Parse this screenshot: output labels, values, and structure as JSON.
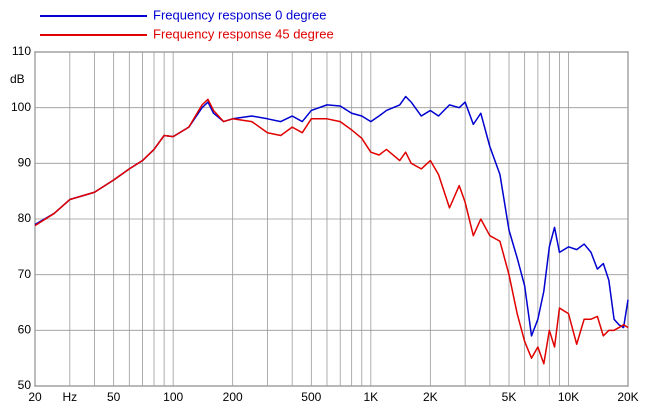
{
  "chart_data": {
    "type": "line",
    "ylabel": "dB",
    "log_x": true,
    "grid": true,
    "xlim": [
      20,
      20000
    ],
    "ylim": [
      50,
      110
    ],
    "yticks": [
      50,
      60,
      70,
      80,
      90,
      100,
      110
    ],
    "xticks": [
      20,
      {
        "value": 30,
        "label": "Hz"
      },
      50,
      100,
      200,
      500,
      {
        "value": 1000,
        "label": "1K"
      },
      {
        "value": 2000,
        "label": "2K"
      },
      {
        "value": 5000,
        "label": "5K"
      },
      {
        "value": 10000,
        "label": "10K"
      },
      {
        "value": 20000,
        "label": "20K"
      }
    ],
    "minor_xticks": [
      40,
      60,
      70,
      80,
      90,
      300,
      400,
      600,
      700,
      800,
      900,
      3000,
      4000,
      6000,
      7000,
      8000,
      9000
    ],
    "x": [
      20,
      25,
      30,
      35,
      40,
      50,
      60,
      70,
      80,
      90,
      100,
      120,
      140,
      150,
      160,
      180,
      200,
      250,
      300,
      350,
      400,
      450,
      500,
      600,
      700,
      800,
      900,
      1000,
      1100,
      1200,
      1400,
      1500,
      1600,
      1800,
      2000,
      2200,
      2500,
      2800,
      3000,
      3300,
      3600,
      4000,
      4500,
      5000,
      5500,
      6000,
      6500,
      7000,
      7500,
      8000,
      8500,
      9000,
      10000,
      11000,
      12000,
      13000,
      14000,
      15000,
      16000,
      17000,
      18000,
      19000,
      20000
    ],
    "series": [
      {
        "name": "Frequency response 0 degree",
        "color": "#0000d0",
        "values": [
          79,
          81,
          83.5,
          84.2,
          84.8,
          87,
          89,
          90.5,
          92.5,
          95,
          94.8,
          96.5,
          100,
          101,
          99,
          97.5,
          98,
          98.5,
          98,
          97.5,
          98.5,
          97.5,
          99.5,
          100.5,
          100.3,
          99,
          98.5,
          97.5,
          98.5,
          99.5,
          100.5,
          102,
          101,
          98.5,
          99.5,
          98.5,
          100.5,
          100,
          101,
          97,
          99,
          93,
          88,
          78,
          73,
          68,
          59,
          62,
          67,
          75,
          78.5,
          74,
          75,
          74.5,
          75.5,
          74,
          71,
          72,
          69,
          62,
          61,
          60.5,
          65.5
        ]
      },
      {
        "name": "Frequency response 45 degree",
        "color": "#e00000",
        "values": [
          78.8,
          81,
          83.5,
          84.2,
          84.8,
          87,
          89,
          90.5,
          92.5,
          95,
          94.8,
          96.5,
          100.5,
          101.5,
          99.5,
          97.5,
          98,
          97.5,
          95.5,
          95,
          96.5,
          95.5,
          98,
          98,
          97.5,
          96,
          94.5,
          92,
          91.5,
          92.5,
          90.5,
          92,
          90,
          89,
          90.5,
          88,
          82,
          86,
          83,
          77,
          80,
          77,
          76,
          70,
          63,
          58,
          55,
          57,
          54,
          60,
          57,
          64,
          63,
          57.5,
          62,
          62,
          62.5,
          59,
          60,
          60,
          60.5,
          61,
          60.5
        ]
      }
    ]
  }
}
